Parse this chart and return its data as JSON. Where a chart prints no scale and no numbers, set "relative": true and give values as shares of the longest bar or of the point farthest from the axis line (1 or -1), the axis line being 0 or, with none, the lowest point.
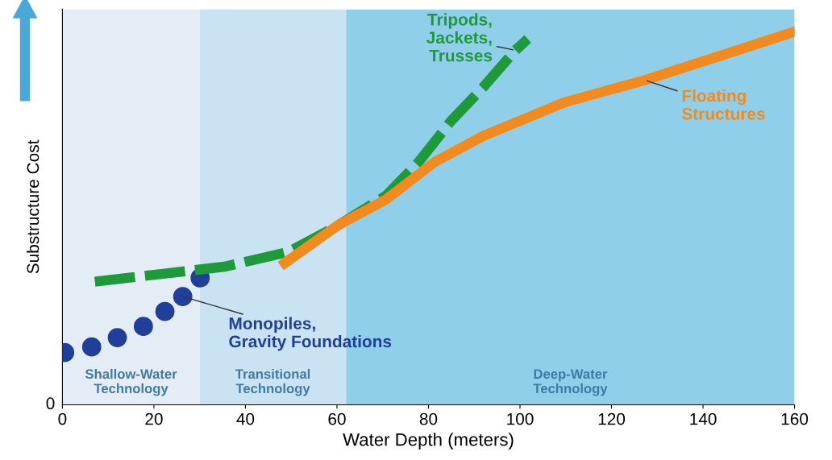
{
  "chart_data": {
    "type": "line",
    "relative": true,
    "xlabel": "Water Depth (meters)",
    "ylabel": "Substructure Cost",
    "xlim": [
      0,
      160
    ],
    "xticks": [
      0,
      20,
      40,
      60,
      80,
      100,
      120,
      140,
      160
    ],
    "grid": false,
    "legend": false,
    "annotations": [
      "0"
    ],
    "bands": [
      {
        "axis": "x",
        "from": 0,
        "to": 30,
        "label": "Shallow-Water\nTechnology",
        "color": "#e4edf5"
      },
      {
        "axis": "x",
        "from": 30,
        "to": 62,
        "label": "Transitional\nTechnology",
        "color": "#c9e3f2"
      },
      {
        "axis": "x",
        "from": 62,
        "to": 160,
        "label": "Deep-Water\nTechnology",
        "color": "#8fcfea"
      }
    ],
    "series": [
      {
        "name": "Monopiles,\nGravity Foundations",
        "type": "scatter",
        "marker": "circle",
        "color": "#1f3f9a",
        "x": [
          0.5,
          6.4,
          12.0,
          17.7,
          22.4,
          26.3,
          30.1
        ],
        "values": [
          0.14,
          0.155,
          0.18,
          0.21,
          0.25,
          0.29,
          0.34
        ]
      },
      {
        "name": "Tripods,\nJackets,\nTrusses",
        "line_style": "dashed",
        "color": "#1e9a3a",
        "x": [
          7.1,
          21.2,
          35.4,
          49.5,
          60.1,
          70.7,
          77.8,
          84.9,
          91.9,
          99.0,
          101.7
        ],
        "values": [
          0.33,
          0.35,
          0.37,
          0.41,
          0.48,
          0.56,
          0.65,
          0.76,
          0.85,
          0.95,
          0.98
        ]
      },
      {
        "name": "Floating\nStructures",
        "line_style": "solid",
        "color": "#f28a1e",
        "x": [
          48.6,
          60.1,
          70.7,
          81.3,
          91.9,
          109.6,
          127.3,
          145.0,
          160
        ],
        "values": [
          0.38,
          0.48,
          0.55,
          0.65,
          0.72,
          0.81,
          0.87,
          0.94,
          1.0
        ]
      }
    ]
  }
}
